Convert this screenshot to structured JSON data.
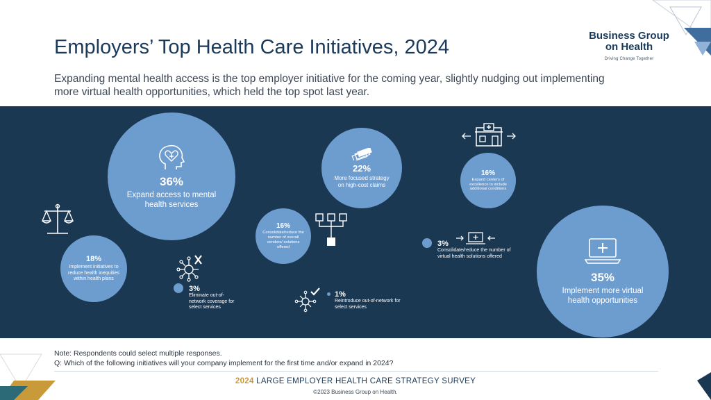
{
  "header": {
    "title": "Employers’ Top Health Care Initiatives, 2024",
    "subtitle": "Expanding mental health access is the top employer initiative for the coming year, slightly nudging out implementing more virtual health opportunities, which held the top spot last year."
  },
  "logo": {
    "line1": "Business Group",
    "line2": "on Health",
    "tagline": "Driving Change Together"
  },
  "chart_data": {
    "type": "bubble",
    "title": "Employers’ Top Health Care Initiatives, 2024",
    "unit": "percent of respondents",
    "items": [
      {
        "value": 36,
        "value_label": "36%",
        "label": "Expand access to mental health services"
      },
      {
        "value": 35,
        "value_label": "35%",
        "label": "Implement more virtual health opportunities"
      },
      {
        "value": 22,
        "value_label": "22%",
        "label": "More focused strategy on high-cost claims"
      },
      {
        "value": 18,
        "value_label": "18%",
        "label": "Implement initiatives to reduce health inequities within health plans"
      },
      {
        "value": 16,
        "value_label": "16%",
        "label": "Consolidate/reduce the number of overall vendors/ solutions offered"
      },
      {
        "value": 16,
        "value_label": "16%",
        "label": "Expand centers of excellence to include additional conditions"
      },
      {
        "value": 3,
        "value_label": "3%",
        "label": "Eliminate out-of-network coverage for select services"
      },
      {
        "value": 3,
        "value_label": "3%",
        "label": "Consolidate/reduce the number of virtual health solutions offered"
      },
      {
        "value": 1,
        "value_label": "1%",
        "label": "Reintroduce out-of-network for select services"
      }
    ]
  },
  "footer": {
    "note": "Note: Respondents could select multiple responses.",
    "question": "Q: Which of the following initiatives will your company implement for the first time and/or expand in 2024?",
    "survey_year": "2024",
    "survey_title": "LARGE EMPLOYER HEALTH CARE STRATEGY SURVEY",
    "copyright": "©2023 Business Group on Health."
  },
  "colors": {
    "band": "#1b3853",
    "bubble": "#6d9ccf",
    "title": "#1b3a5a",
    "accent_gold": "#c89a3a"
  }
}
